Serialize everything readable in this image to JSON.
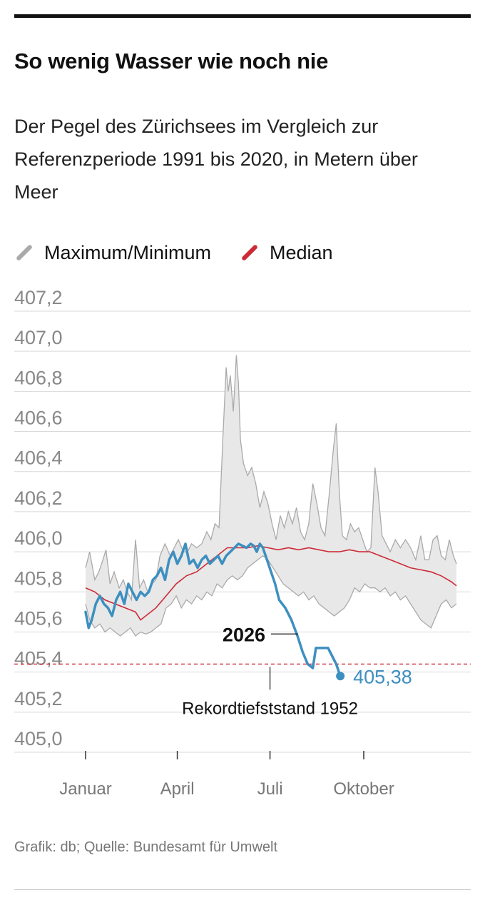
{
  "title": "So wenig Wasser wie noch nie",
  "subtitle": "Der Pegel des Zürichsees im Vergleich zur Referenzperiode 1991 bis 2020, in Metern über Meer",
  "legend": [
    {
      "label": "Maximum/Minimum",
      "color": "#aaaaaa"
    },
    {
      "label": "Median",
      "color": "#cc2a36"
    }
  ],
  "footer": "Grafik: db; Quelle: Bundesamt für Umwelt",
  "chart_data": {
    "type": "line",
    "x_unit": "day of year",
    "ylim": [
      405.0,
      407.2
    ],
    "yticks": [
      405.0,
      405.2,
      405.4,
      405.6,
      405.8,
      406.0,
      406.2,
      406.4,
      406.6,
      406.8,
      407.0,
      407.2
    ],
    "ytick_labels": [
      "405,0",
      "405,2",
      "405,4",
      "405,6",
      "405,8",
      "406,0",
      "406,2",
      "406,4",
      "406,6",
      "406,8",
      "407,0",
      "407,2"
    ],
    "xticks": [
      {
        "label": "Januar",
        "day": 1
      },
      {
        "label": "April",
        "day": 91
      },
      {
        "label": "Juli",
        "day": 182
      },
      {
        "label": "Oktober",
        "day": 274
      }
    ],
    "grid": true,
    "colors": {
      "range_fill": "#e8e8e8",
      "range_line": "#aaaaaa",
      "median": "#cc2a36",
      "current": "#3d8fc0",
      "record": "#cc2a36"
    },
    "series": [
      {
        "name": "Maximum/Minimum",
        "role": "max",
        "points": [
          [
            1,
            405.92
          ],
          [
            5,
            406.0
          ],
          [
            10,
            405.86
          ],
          [
            14,
            405.9
          ],
          [
            18,
            405.96
          ],
          [
            21,
            406.01
          ],
          [
            25,
            405.84
          ],
          [
            29,
            405.9
          ],
          [
            34,
            405.82
          ],
          [
            38,
            405.86
          ],
          [
            42,
            405.8
          ],
          [
            46,
            405.76
          ],
          [
            50,
            406.06
          ],
          [
            54,
            405.82
          ],
          [
            58,
            405.86
          ],
          [
            62,
            405.8
          ],
          [
            66,
            405.84
          ],
          [
            70,
            405.86
          ],
          [
            74,
            405.98
          ],
          [
            79,
            406.04
          ],
          [
            84,
            405.98
          ],
          [
            88,
            406.02
          ],
          [
            92,
            406.06
          ],
          [
            97,
            406.0
          ],
          [
            101,
            406.0
          ],
          [
            105,
            406.04
          ],
          [
            110,
            406.02
          ],
          [
            115,
            406.04
          ],
          [
            120,
            406.1
          ],
          [
            124,
            406.06
          ],
          [
            128,
            406.14
          ],
          [
            132,
            406.12
          ],
          [
            136,
            406.6
          ],
          [
            139,
            406.92
          ],
          [
            141,
            406.8
          ],
          [
            143,
            406.88
          ],
          [
            146,
            406.7
          ],
          [
            149,
            406.98
          ],
          [
            151,
            406.84
          ],
          [
            153,
            406.56
          ],
          [
            156,
            406.44
          ],
          [
            160,
            406.38
          ],
          [
            164,
            406.42
          ],
          [
            168,
            406.34
          ],
          [
            172,
            406.22
          ],
          [
            176,
            406.3
          ],
          [
            180,
            406.24
          ],
          [
            184,
            406.14
          ],
          [
            188,
            406.06
          ],
          [
            192,
            406.18
          ],
          [
            196,
            406.12
          ],
          [
            200,
            406.2
          ],
          [
            204,
            406.14
          ],
          [
            208,
            406.22
          ],
          [
            212,
            406.1
          ],
          [
            216,
            406.06
          ],
          [
            220,
            406.14
          ],
          [
            224,
            406.34
          ],
          [
            228,
            406.24
          ],
          [
            232,
            406.12
          ],
          [
            236,
            406.08
          ],
          [
            240,
            406.28
          ],
          [
            244,
            406.5
          ],
          [
            247,
            406.64
          ],
          [
            250,
            406.3
          ],
          [
            253,
            406.08
          ],
          [
            257,
            406.06
          ],
          [
            261,
            406.14
          ],
          [
            265,
            406.1
          ],
          [
            269,
            406.12
          ],
          [
            273,
            406.06
          ],
          [
            277,
            406.0
          ],
          [
            281,
            406.02
          ],
          [
            285,
            406.42
          ],
          [
            288,
            406.3
          ],
          [
            292,
            406.08
          ],
          [
            296,
            406.04
          ],
          [
            300,
            406.0
          ],
          [
            305,
            406.06
          ],
          [
            310,
            406.02
          ],
          [
            315,
            406.06
          ],
          [
            320,
            406.02
          ],
          [
            325,
            405.96
          ],
          [
            330,
            406.08
          ],
          [
            334,
            405.96
          ],
          [
            338,
            405.96
          ],
          [
            342,
            406.06
          ],
          [
            346,
            406.08
          ],
          [
            350,
            405.98
          ],
          [
            354,
            405.96
          ],
          [
            358,
            406.06
          ],
          [
            362,
            405.98
          ],
          [
            365,
            405.94
          ]
        ]
      },
      {
        "name": "Maximum/Minimum",
        "role": "min",
        "points": [
          [
            1,
            405.74
          ],
          [
            5,
            405.66
          ],
          [
            10,
            405.62
          ],
          [
            15,
            405.64
          ],
          [
            20,
            405.6
          ],
          [
            25,
            405.62
          ],
          [
            30,
            405.6
          ],
          [
            35,
            405.58
          ],
          [
            40,
            405.6
          ],
          [
            45,
            405.62
          ],
          [
            50,
            405.58
          ],
          [
            55,
            405.6
          ],
          [
            60,
            405.59
          ],
          [
            65,
            405.6
          ],
          [
            70,
            405.62
          ],
          [
            75,
            405.64
          ],
          [
            80,
            405.72
          ],
          [
            85,
            405.74
          ],
          [
            90,
            405.78
          ],
          [
            95,
            405.72
          ],
          [
            100,
            405.76
          ],
          [
            105,
            405.74
          ],
          [
            110,
            405.78
          ],
          [
            115,
            405.76
          ],
          [
            120,
            405.8
          ],
          [
            125,
            405.78
          ],
          [
            130,
            405.84
          ],
          [
            135,
            405.82
          ],
          [
            140,
            405.86
          ],
          [
            145,
            405.88
          ],
          [
            150,
            405.86
          ],
          [
            155,
            405.88
          ],
          [
            160,
            405.92
          ],
          [
            165,
            405.94
          ],
          [
            170,
            405.96
          ],
          [
            175,
            405.98
          ],
          [
            180,
            405.96
          ],
          [
            185,
            405.92
          ],
          [
            190,
            405.88
          ],
          [
            195,
            405.84
          ],
          [
            200,
            405.82
          ],
          [
            205,
            405.8
          ],
          [
            210,
            405.78
          ],
          [
            215,
            405.8
          ],
          [
            220,
            405.76
          ],
          [
            225,
            405.78
          ],
          [
            230,
            405.74
          ],
          [
            235,
            405.72
          ],
          [
            240,
            405.7
          ],
          [
            245,
            405.68
          ],
          [
            250,
            405.7
          ],
          [
            255,
            405.72
          ],
          [
            260,
            405.76
          ],
          [
            265,
            405.82
          ],
          [
            270,
            405.8
          ],
          [
            275,
            405.84
          ],
          [
            280,
            405.82
          ],
          [
            285,
            405.82
          ],
          [
            290,
            405.8
          ],
          [
            295,
            405.82
          ],
          [
            300,
            405.78
          ],
          [
            305,
            405.8
          ],
          [
            310,
            405.76
          ],
          [
            315,
            405.78
          ],
          [
            320,
            405.74
          ],
          [
            325,
            405.7
          ],
          [
            330,
            405.66
          ],
          [
            335,
            405.64
          ],
          [
            340,
            405.62
          ],
          [
            345,
            405.68
          ],
          [
            350,
            405.74
          ],
          [
            355,
            405.76
          ],
          [
            360,
            405.72
          ],
          [
            365,
            405.74
          ]
        ]
      },
      {
        "name": "Median",
        "points": [
          [
            1,
            405.82
          ],
          [
            10,
            405.8
          ],
          [
            20,
            405.76
          ],
          [
            30,
            405.74
          ],
          [
            40,
            405.72
          ],
          [
            50,
            405.7
          ],
          [
            55,
            405.66
          ],
          [
            60,
            405.68
          ],
          [
            70,
            405.72
          ],
          [
            80,
            405.78
          ],
          [
            90,
            405.84
          ],
          [
            100,
            405.88
          ],
          [
            110,
            405.9
          ],
          [
            120,
            405.94
          ],
          [
            130,
            405.98
          ],
          [
            140,
            406.02
          ],
          [
            150,
            406.02
          ],
          [
            160,
            406.02
          ],
          [
            170,
            406.03
          ],
          [
            180,
            406.02
          ],
          [
            190,
            406.01
          ],
          [
            200,
            406.02
          ],
          [
            210,
            406.01
          ],
          [
            220,
            406.02
          ],
          [
            230,
            406.01
          ],
          [
            240,
            406.0
          ],
          [
            250,
            406.0
          ],
          [
            260,
            406.01
          ],
          [
            270,
            406.0
          ],
          [
            280,
            406.0
          ],
          [
            290,
            405.98
          ],
          [
            300,
            405.96
          ],
          [
            310,
            405.94
          ],
          [
            320,
            405.92
          ],
          [
            330,
            405.91
          ],
          [
            340,
            405.9
          ],
          [
            350,
            405.88
          ],
          [
            360,
            405.85
          ],
          [
            365,
            405.83
          ]
        ]
      },
      {
        "name": "2026",
        "points": [
          [
            1,
            405.7
          ],
          [
            4,
            405.62
          ],
          [
            7,
            405.66
          ],
          [
            11,
            405.74
          ],
          [
            15,
            405.78
          ],
          [
            19,
            405.74
          ],
          [
            23,
            405.72
          ],
          [
            27,
            405.68
          ],
          [
            31,
            405.76
          ],
          [
            35,
            405.8
          ],
          [
            39,
            405.74
          ],
          [
            43,
            405.84
          ],
          [
            47,
            405.8
          ],
          [
            51,
            405.76
          ],
          [
            55,
            405.8
          ],
          [
            59,
            405.78
          ],
          [
            63,
            405.8
          ],
          [
            67,
            405.86
          ],
          [
            71,
            405.88
          ],
          [
            75,
            405.92
          ],
          [
            79,
            405.86
          ],
          [
            83,
            405.96
          ],
          [
            87,
            406.0
          ],
          [
            91,
            405.94
          ],
          [
            95,
            405.98
          ],
          [
            99,
            406.04
          ],
          [
            103,
            405.94
          ],
          [
            107,
            405.96
          ],
          [
            111,
            405.92
          ],
          [
            115,
            405.96
          ],
          [
            119,
            405.98
          ],
          [
            123,
            405.94
          ],
          [
            127,
            405.96
          ],
          [
            131,
            405.98
          ],
          [
            135,
            405.94
          ],
          [
            139,
            405.98
          ],
          [
            143,
            406.0
          ],
          [
            147,
            406.02
          ],
          [
            151,
            406.04
          ],
          [
            155,
            406.03
          ],
          [
            159,
            406.02
          ],
          [
            163,
            406.04
          ],
          [
            166,
            406.03
          ],
          [
            169,
            406.0
          ],
          [
            172,
            406.04
          ],
          [
            175,
            406.02
          ],
          [
            179,
            405.96
          ],
          [
            183,
            405.9
          ],
          [
            187,
            405.84
          ],
          [
            191,
            405.76
          ],
          [
            197,
            405.72
          ],
          [
            203,
            405.66
          ],
          [
            209,
            405.58
          ],
          [
            214,
            405.5
          ],
          [
            219,
            405.44
          ],
          [
            224,
            405.42
          ],
          [
            227,
            405.52
          ],
          [
            231,
            405.52
          ],
          [
            235,
            405.52
          ],
          [
            239,
            405.52
          ],
          [
            243,
            405.48
          ],
          [
            247,
            405.44
          ],
          [
            251,
            405.38
          ]
        ]
      }
    ],
    "reference_line": {
      "label": "Rekordtiefststand 1952",
      "value": 405.44
    },
    "annotations": [
      {
        "label": "2026",
        "day": 176,
        "value": 405.59
      },
      {
        "label": "405,38",
        "day": 251,
        "value": 405.38
      }
    ]
  }
}
